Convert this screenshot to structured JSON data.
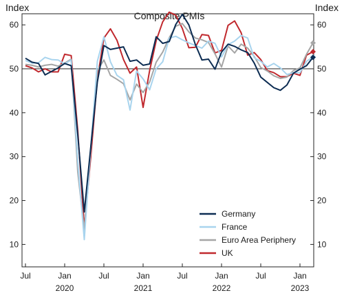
{
  "chart_data": {
    "type": "line",
    "title": "Composite PMIs",
    "ylabel_left": "Index",
    "ylabel_right": "Index",
    "ylim": [
      8,
      65
    ],
    "yticks": [
      10,
      20,
      30,
      40,
      50,
      60
    ],
    "reference_line": 50,
    "x": [
      "2019-07",
      "2019-08",
      "2019-09",
      "2019-10",
      "2019-11",
      "2019-12",
      "2020-01",
      "2020-02",
      "2020-03",
      "2020-04",
      "2020-05",
      "2020-06",
      "2020-07",
      "2020-08",
      "2020-09",
      "2020-10",
      "2020-11",
      "2020-12",
      "2021-01",
      "2021-02",
      "2021-03",
      "2021-04",
      "2021-05",
      "2021-06",
      "2021-07",
      "2021-08",
      "2021-09",
      "2021-10",
      "2021-11",
      "2021-12",
      "2022-01",
      "2022-02",
      "2022-03",
      "2022-04",
      "2022-05",
      "2022-06",
      "2022-07",
      "2022-08",
      "2022-09",
      "2022-10",
      "2022-11",
      "2022-12",
      "2023-01",
      "2023-02",
      "2023-03"
    ],
    "xticks": [
      {
        "date": "2019-07",
        "label": "Jul",
        "sublabel": ""
      },
      {
        "date": "2020-01",
        "label": "Jan",
        "sublabel": "2020"
      },
      {
        "date": "2020-07",
        "label": "Jul",
        "sublabel": ""
      },
      {
        "date": "2021-01",
        "label": "Jan",
        "sublabel": "2021"
      },
      {
        "date": "2021-07",
        "label": "Jul",
        "sublabel": ""
      },
      {
        "date": "2022-01",
        "label": "Jan",
        "sublabel": "2022"
      },
      {
        "date": "2022-07",
        "label": "Jul",
        "sublabel": ""
      },
      {
        "date": "2023-01",
        "label": "Jan",
        "sublabel": "2023"
      }
    ],
    "series": [
      {
        "name": "Germany",
        "color": "#0c2c52",
        "values": [
          52.4,
          51.5,
          51.2,
          48.6,
          49.4,
          50.2,
          51.2,
          50.7,
          35.0,
          17.4,
          32.3,
          47.0,
          55.3,
          54.4,
          54.7,
          55.0,
          51.7,
          52.0,
          50.8,
          51.1,
          57.3,
          55.8,
          56.2,
          60.1,
          62.4,
          60.0,
          55.5,
          52.0,
          52.2,
          49.9,
          53.8,
          55.6,
          55.1,
          54.3,
          53.7,
          51.3,
          48.1,
          46.9,
          45.7,
          45.1,
          46.3,
          49.0,
          49.9,
          50.7,
          52.6
        ]
      },
      {
        "name": "France",
        "color": "#a8d4ee",
        "values": [
          51.9,
          51.3,
          51.4,
          52.6,
          52.1,
          52.0,
          51.1,
          52.0,
          28.9,
          11.1,
          32.1,
          51.7,
          57.3,
          51.6,
          48.5,
          47.5,
          40.6,
          49.5,
          47.7,
          45.2,
          50.0,
          51.6,
          57.0,
          57.4,
          56.6,
          55.9,
          55.3,
          54.7,
          56.3,
          55.8,
          52.7,
          55.5,
          56.3,
          57.6,
          57.0,
          52.5,
          51.7,
          50.4,
          51.2,
          50.2,
          48.7,
          49.1,
          49.1,
          51.7,
          52.7
        ]
      },
      {
        "name": "Euro Area Periphery",
        "color": "#a5a5a5",
        "values": [
          51.0,
          50.8,
          50.4,
          50.8,
          51.0,
          50.6,
          51.3,
          52.2,
          26.5,
          13.3,
          31.9,
          49.6,
          52.0,
          48.5,
          47.6,
          46.6,
          42.9,
          46.5,
          44.6,
          47.0,
          51.5,
          53.8,
          57.1,
          59.7,
          60.3,
          58.4,
          57.0,
          56.6,
          56.0,
          53.4,
          50.4,
          55.2,
          53.6,
          55.6,
          54.7,
          52.8,
          50.3,
          49.5,
          48.4,
          47.8,
          48.1,
          49.6,
          50.2,
          53.3,
          55.9
        ]
      },
      {
        "name": "UK",
        "color": "#c0282d",
        "values": [
          50.7,
          50.2,
          49.3,
          50.0,
          49.3,
          49.3,
          53.3,
          53.0,
          36.0,
          13.8,
          30.0,
          47.7,
          57.0,
          59.1,
          56.5,
          52.1,
          49.0,
          50.4,
          41.2,
          49.6,
          56.4,
          60.7,
          62.9,
          62.2,
          59.2,
          54.8,
          54.9,
          57.8,
          57.6,
          53.6,
          54.2,
          59.9,
          60.9,
          58.2,
          53.1,
          53.7,
          52.1,
          49.6,
          49.1,
          48.2,
          48.2,
          49.0,
          48.5,
          53.1,
          53.9
        ]
      }
    ],
    "legend_position": "bottom-right",
    "grid": false
  }
}
